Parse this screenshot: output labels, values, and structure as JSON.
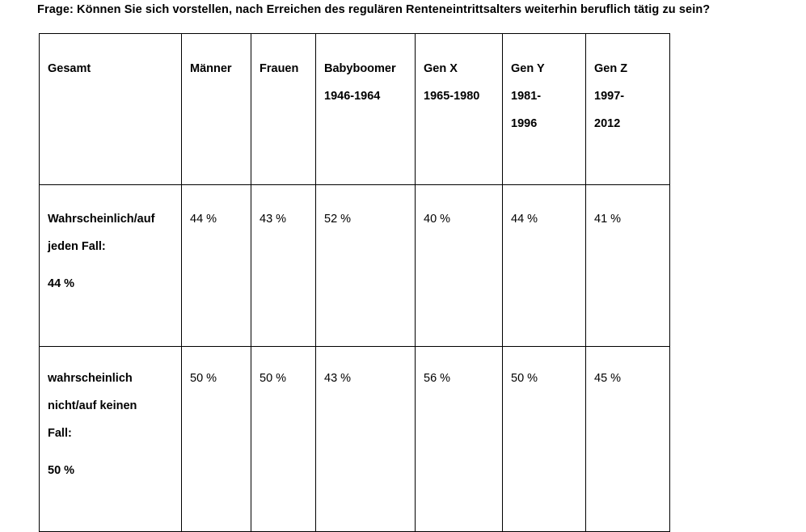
{
  "question": "Frage: Können Sie sich vorstellen, nach Erreichen des regulären Renteneintrittsalters weiterhin beruflich tätig zu sein?",
  "table": {
    "header": {
      "gesamt": [
        "Gesamt"
      ],
      "maenner": [
        "Männer"
      ],
      "frauen": [
        "Frauen"
      ],
      "babyboomer": [
        "Babyboomer",
        "1946-1964"
      ],
      "genx": [
        "Gen X",
        "1965-1980"
      ],
      "geny": [
        "Gen Y",
        "1981-",
        "1996"
      ],
      "genz": [
        "Gen Z",
        "1997-",
        "2012"
      ]
    },
    "rows": [
      {
        "label_lines": [
          "Wahrscheinlich/auf",
          "jeden Fall:"
        ],
        "total": "44 %",
        "values": [
          "44 %",
          "43 %",
          "52 %",
          "40 %",
          "44 %",
          "41 %"
        ]
      },
      {
        "label_lines": [
          "wahrscheinlich",
          "nicht/auf keinen",
          "Fall:"
        ],
        "total": "50 %",
        "values": [
          "50 %",
          "50 %",
          "43 %",
          "56 %",
          "50 %",
          "45 %"
        ]
      }
    ]
  }
}
